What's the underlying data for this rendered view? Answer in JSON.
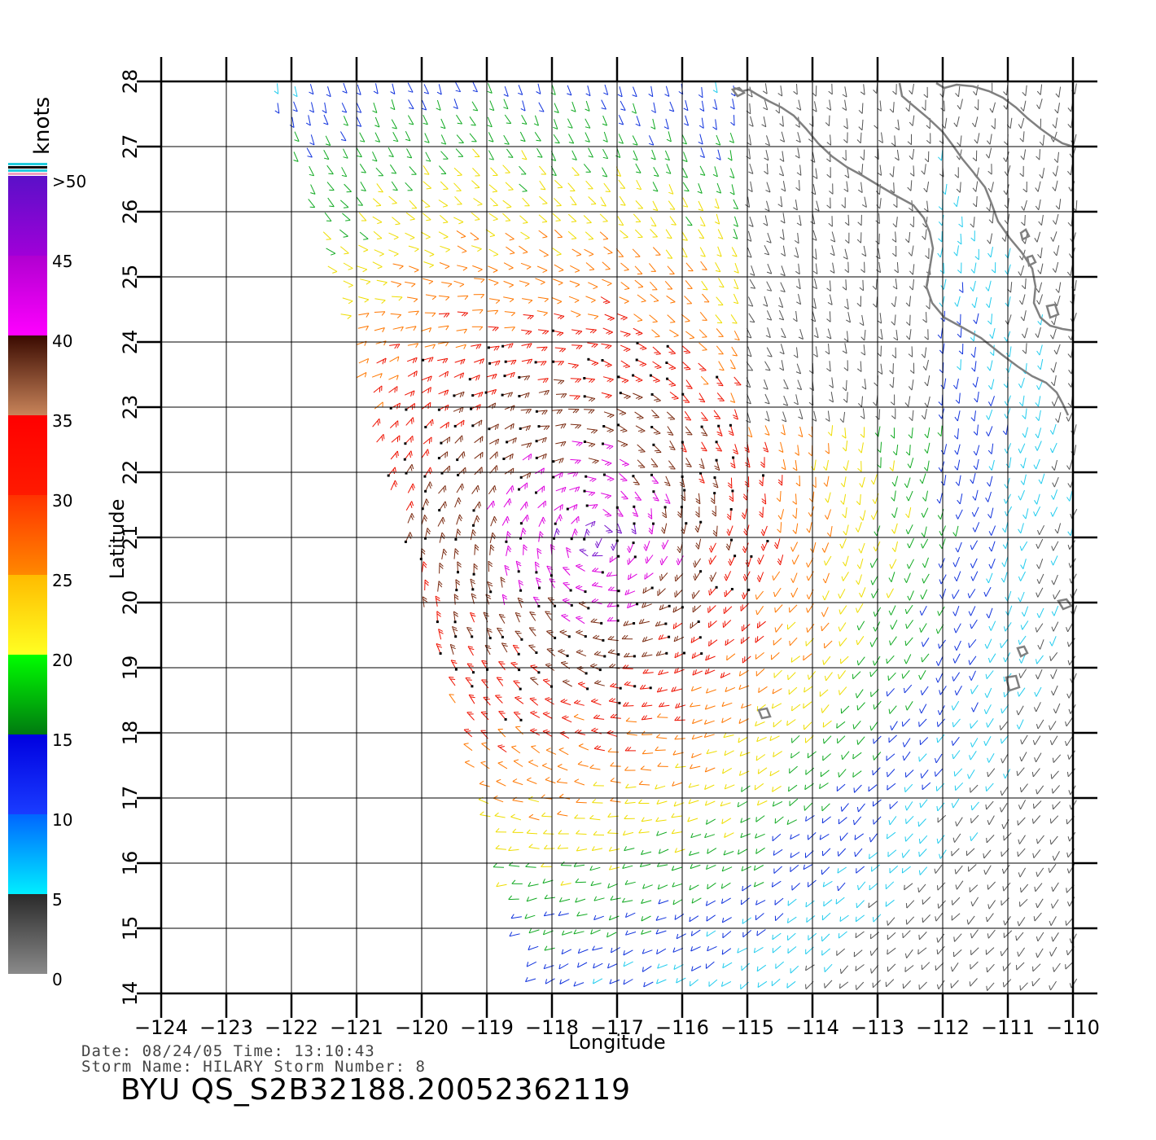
{
  "map": {
    "x_axis_label": "Longitude",
    "y_axis_label": "Latitude",
    "lon_range": [
      -124,
      -110
    ],
    "lat_range": [
      14,
      28
    ],
    "lon_ticks": [
      "−124",
      "−123",
      "−122",
      "−121",
      "−120",
      "−119",
      "−118",
      "−117",
      "−116",
      "−115",
      "−114",
      "−113",
      "−112",
      "−111",
      "−110"
    ],
    "lat_ticks": [
      "14",
      "15",
      "16",
      "17",
      "18",
      "19",
      "20",
      "21",
      "22",
      "23",
      "24",
      "25",
      "26",
      "27",
      "28"
    ],
    "grid": true,
    "coastline_color": "#808080",
    "storm_center": {
      "lon": -117.3,
      "lat": 21.0
    }
  },
  "colorbar": {
    "unit": "knots",
    "labels": [
      {
        "text": ">50",
        "value": 50
      },
      {
        "text": "45",
        "value": 45
      },
      {
        "text": "40",
        "value": 40
      },
      {
        "text": "35",
        "value": 35
      },
      {
        "text": "30",
        "value": 30
      },
      {
        "text": "25",
        "value": 25
      },
      {
        "text": "20",
        "value": 20
      },
      {
        "text": "15",
        "value": 15
      },
      {
        "text": "10",
        "value": 10
      },
      {
        "text": "5",
        "value": 5
      },
      {
        "text": "0",
        "value": 0
      }
    ],
    "bands": [
      {
        "from": 0,
        "to": 5,
        "top": "#2a2a2a",
        "bottom": "#8a8a8a"
      },
      {
        "from": 5,
        "to": 10,
        "top": "#0066ff",
        "bottom": "#00eeff"
      },
      {
        "from": 10,
        "to": 15,
        "top": "#0000e0",
        "bottom": "#1a3cff"
      },
      {
        "from": 15,
        "to": 20,
        "top": "#00ff00",
        "bottom": "#007a10"
      },
      {
        "from": 20,
        "to": 25,
        "top": "#ffbb00",
        "bottom": "#ffff22"
      },
      {
        "from": 25,
        "to": 30,
        "top": "#ff3300",
        "bottom": "#ff8800"
      },
      {
        "from": 30,
        "to": 35,
        "top": "#ff0000",
        "bottom": "#ff1a00"
      },
      {
        "from": 35,
        "to": 40,
        "top": "#3a0a00",
        "bottom": "#c8845a"
      },
      {
        "from": 40,
        "to": 45,
        "top": "#b000d0",
        "bottom": "#ff00ff"
      },
      {
        "from": 45,
        "to": 50,
        "top": "#5a10c8",
        "bottom": "#a000d8"
      }
    ]
  },
  "info": {
    "date_line": "Date: 08/24/05   Time: 13:10:43",
    "storm_line": "Storm Name: HILARY   Storm Number: 8",
    "filename": "BYU QS_S2B32188.20052362119"
  }
}
